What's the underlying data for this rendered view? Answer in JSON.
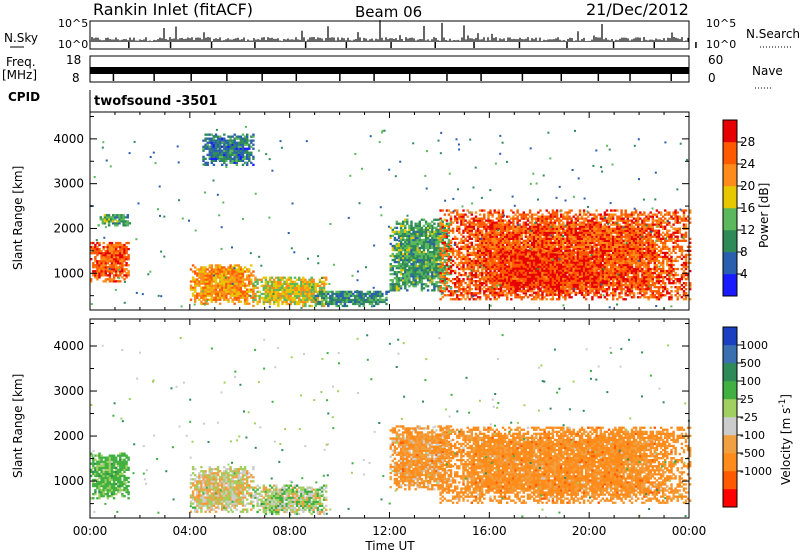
{
  "header": {
    "title": "Rankin Inlet (fitACF)",
    "beam": "Beam 06",
    "date": "21/Dec/2012"
  },
  "panels": {
    "nsky_label": "N.Sky",
    "nsearch_label": "N.Search",
    "nsky_ticks": [
      "10^5",
      "10^0"
    ],
    "nsearch_ticks": [
      "10^5",
      "10^0"
    ],
    "freq_label": "Freq.",
    "freq_unit": "[MHz]",
    "freq_ticks": [
      "18",
      "8"
    ],
    "nave_label": "Nave",
    "nave_ticks": [
      "60",
      "0"
    ],
    "cpid_label": "CPID",
    "cpid_value": "twofsound -3501"
  },
  "colors": {
    "power": [
      "#1a1aff",
      "#2a5fb0",
      "#2e8b57",
      "#5cb85c",
      "#e6c700",
      "#ff8c1a",
      "#ff5a00",
      "#e60000"
    ],
    "velocity": [
      "#ff0000",
      "#ff5a00",
      "#ff8c1a",
      "#f0a040",
      "#cccccc",
      "#a0d060",
      "#40b040",
      "#2e8b57",
      "#3a6fb0",
      "#1a3fc0"
    ]
  },
  "chart_data": [
    {
      "type": "heatmap",
      "name": "power",
      "ylabel": "Slant Range [km]",
      "yticks": [
        "4000",
        "3000",
        "2000",
        "1000"
      ],
      "ylim": [
        180,
        4600
      ],
      "xlim": [
        0,
        24
      ],
      "colorbar": {
        "label": "Power [dB]",
        "ticks": [
          "28",
          "24",
          "20",
          "16",
          "12",
          "8",
          "4"
        ],
        "range": [
          0,
          30
        ]
      },
      "regions": [
        {
          "t": [
            0.0,
            1.5
          ],
          "r": [
            800,
            1700
          ],
          "level": 26
        },
        {
          "t": [
            0.3,
            1.6
          ],
          "r": [
            2050,
            2300
          ],
          "level": 12
        },
        {
          "t": [
            4.0,
            6.5
          ],
          "r": [
            300,
            1200
          ],
          "level": 22
        },
        {
          "t": [
            4.5,
            6.5
          ],
          "r": [
            3400,
            4100
          ],
          "level": 8
        },
        {
          "t": [
            6.5,
            9.5
          ],
          "r": [
            250,
            900
          ],
          "level": 18
        },
        {
          "t": [
            9.0,
            12.0
          ],
          "r": [
            250,
            600
          ],
          "level": 10
        },
        {
          "t": [
            12.0,
            14.5
          ],
          "r": [
            600,
            2200
          ],
          "level": 12
        },
        {
          "t": [
            14.0,
            24.0
          ],
          "r": [
            400,
            2400
          ],
          "level": 26
        },
        {
          "t": [
            16.0,
            20.5
          ],
          "r": [
            500,
            1500
          ],
          "level": 28
        }
      ]
    },
    {
      "type": "heatmap",
      "name": "velocity",
      "xlabel": "Time UT",
      "xticks": [
        "00:00",
        "04:00",
        "08:00",
        "12:00",
        "16:00",
        "20:00",
        "00:00"
      ],
      "ylabel": "Slant Range [km]",
      "yticks": [
        "4000",
        "3000",
        "2000",
        "1000"
      ],
      "ylim": [
        180,
        4600
      ],
      "xlim": [
        0,
        24
      ],
      "colorbar": {
        "label": "Velocity [m s^-1]",
        "ticks": [
          "1000",
          "500",
          "100",
          "25",
          "-25",
          "-100",
          "-500",
          "-1000"
        ]
      },
      "regions": [
        {
          "t": [
            0.0,
            1.5
          ],
          "r": [
            600,
            1600
          ],
          "velocity": 150
        },
        {
          "t": [
            4.0,
            6.5
          ],
          "r": [
            300,
            1300
          ],
          "velocity": 0
        },
        {
          "t": [
            6.5,
            9.5
          ],
          "r": [
            250,
            900
          ],
          "velocity": 50
        },
        {
          "t": [
            12.0,
            14.5
          ],
          "r": [
            800,
            2200
          ],
          "velocity": -100
        },
        {
          "t": [
            14.0,
            24.0
          ],
          "r": [
            500,
            2200
          ],
          "velocity": -150
        }
      ]
    }
  ]
}
